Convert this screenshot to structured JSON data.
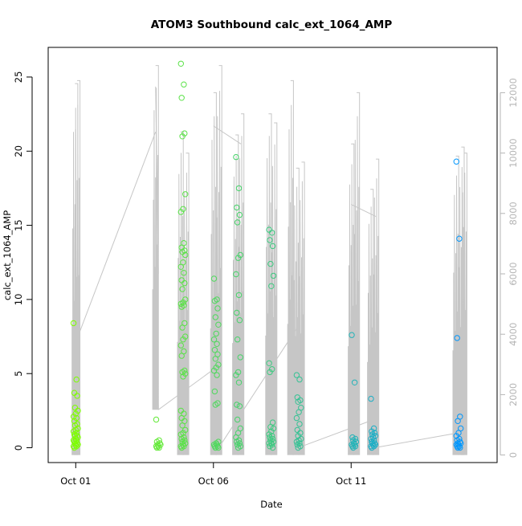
{
  "chart_data": {
    "type": "scatter",
    "title": "ATOM3 Southbound calc_ext_1064_AMP",
    "xlabel": "Date",
    "ylabel": "calc_ext_1064_AMP",
    "x_ticks": [
      "Oct 01",
      "Oct 06",
      "Oct 11"
    ],
    "x_tick_days": [
      1,
      6,
      11
    ],
    "xlim": [
      0.0,
      16.3
    ],
    "ylim": [
      -1.0,
      27.0
    ],
    "y_ticks": [
      0,
      5,
      10,
      15,
      20,
      25
    ],
    "y2lim": [
      -250,
      13500
    ],
    "y2_ticks": [
      0,
      2000,
      4000,
      6000,
      8000,
      10000,
      12000
    ],
    "colors": {
      "point_start": "#7dff00",
      "point_end": "#0096ff",
      "trace": "#c6c6c6",
      "right_axis": "#b5b5b5"
    },
    "series": [
      {
        "type": "points",
        "groups": [
          {
            "day": 1.0,
            "values": [
              8.4,
              4.6,
              3.7,
              3.5,
              2.7,
              2.5,
              2.3,
              2.1,
              2.0,
              1.8,
              1.6,
              1.5,
              1.3,
              1.2,
              1.1,
              1.0,
              0.9,
              0.8,
              0.8,
              0.7,
              0.6,
              0.5,
              0.5,
              0.4,
              0.3,
              0.3,
              0.2,
              0.2,
              0.1,
              0.1,
              0.0
            ]
          },
          {
            "day": 4.0,
            "values": [
              1.9,
              0.5,
              0.4,
              0.3,
              0.2,
              0.2,
              0.1,
              0.1,
              0.0,
              0.0
            ]
          },
          {
            "day": 4.9,
            "values": [
              25.9,
              24.5,
              23.6,
              21.2,
              21.0,
              17.1,
              16.1,
              15.9,
              13.8,
              13.5,
              13.3,
              13.2,
              13.0,
              12.5,
              12.2,
              11.8,
              11.3,
              11.1,
              10.7,
              10.0,
              9.8,
              9.7,
              9.6,
              9.5,
              8.4,
              8.1,
              7.5,
              7.3,
              6.9,
              6.5,
              6.2,
              5.2,
              5.1,
              5.0,
              4.8,
              2.5,
              2.3,
              2.0,
              1.8,
              1.5,
              1.2,
              1.0,
              0.9,
              0.7,
              0.6,
              0.5,
              0.4,
              0.3,
              0.2,
              0.1,
              0.1,
              0.0
            ]
          },
          {
            "day": 6.1,
            "values": [
              11.4,
              10.0,
              9.9,
              9.4,
              8.8,
              8.3,
              7.7,
              7.3,
              7.0,
              6.6,
              6.3,
              6.0,
              5.6,
              5.4,
              5.2,
              4.9,
              3.8,
              3.0,
              2.9,
              0.4,
              0.3,
              0.2,
              0.2,
              0.1,
              0.1,
              0.0,
              0.0
            ]
          },
          {
            "day": 6.9,
            "values": [
              19.6,
              17.5,
              16.2,
              15.7,
              15.2,
              13.0,
              12.8,
              11.7,
              10.3,
              9.1,
              8.6,
              7.3,
              6.1,
              5.1,
              4.9,
              4.4,
              2.9,
              2.8,
              1.9,
              1.3,
              1.0,
              0.7,
              0.5,
              0.4,
              0.3,
              0.2,
              0.1,
              0.0
            ]
          },
          {
            "day": 8.1,
            "values": [
              14.7,
              14.5,
              14.0,
              13.6,
              12.4,
              11.6,
              10.9,
              5.7,
              5.3,
              5.1,
              1.7,
              1.4,
              1.3,
              1.1,
              0.9,
              0.8,
              0.7,
              0.6,
              0.5,
              0.4,
              0.3,
              0.3,
              0.2,
              0.1,
              0.0
            ]
          },
          {
            "day": 9.1,
            "values": [
              4.9,
              4.6,
              3.4,
              3.2,
              3.1,
              2.7,
              2.4,
              2.0,
              1.6,
              1.2,
              1.0,
              0.8,
              0.6,
              0.5,
              0.4,
              0.3,
              0.2,
              0.1,
              0.0
            ]
          },
          {
            "day": 11.1,
            "values": [
              7.6,
              4.4,
              0.7,
              0.6,
              0.5,
              0.4,
              0.3,
              0.2,
              0.2,
              0.1,
              0.1,
              0.0
            ]
          },
          {
            "day": 11.8,
            "values": [
              3.3,
              1.3,
              1.1,
              1.0,
              0.9,
              0.8,
              0.7,
              0.6,
              0.5,
              0.4,
              0.3,
              0.3,
              0.2,
              0.2,
              0.1,
              0.1,
              0.0
            ]
          },
          {
            "day": 14.9,
            "values": [
              19.3,
              14.1,
              7.4,
              2.1,
              1.8,
              1.3,
              1.0,
              0.8,
              0.6,
              0.5,
              0.4,
              0.3,
              0.3,
              0.2,
              0.2,
              0.1,
              0.1,
              0.0,
              0.0
            ]
          }
        ]
      },
      {
        "type": "line",
        "axis": "right",
        "bursts": [
          {
            "day": 0.97,
            "min": 0,
            "max": 12300
          },
          {
            "day": 1.05,
            "min": 0,
            "max": 12400
          },
          {
            "day": 3.9,
            "min": 1500,
            "max": 12900
          },
          {
            "day": 4.8,
            "min": 0,
            "max": 10700
          },
          {
            "day": 5.0,
            "min": 0,
            "max": 10000
          },
          {
            "day": 6.0,
            "min": 0,
            "max": 12000
          },
          {
            "day": 6.2,
            "min": 0,
            "max": 12900
          },
          {
            "day": 6.8,
            "min": 0,
            "max": 10600
          },
          {
            "day": 7.0,
            "min": 0,
            "max": 11300
          },
          {
            "day": 8.0,
            "min": 0,
            "max": 11300
          },
          {
            "day": 8.2,
            "min": 0,
            "max": 11000
          },
          {
            "day": 8.8,
            "min": 0,
            "max": 12400
          },
          {
            "day": 9.0,
            "min": 0,
            "max": 9500
          },
          {
            "day": 9.2,
            "min": 0,
            "max": 9700
          },
          {
            "day": 11.0,
            "min": 0,
            "max": 10300
          },
          {
            "day": 11.2,
            "min": 0,
            "max": 12000
          },
          {
            "day": 11.7,
            "min": 0,
            "max": 8800
          },
          {
            "day": 11.9,
            "min": 0,
            "max": 9800
          },
          {
            "day": 14.8,
            "min": 0,
            "max": 9900
          },
          {
            "day": 15.0,
            "min": 0,
            "max": 10200
          },
          {
            "day": 15.1,
            "min": 0,
            "max": 10000
          }
        ],
        "connectors": [
          [
            1.05,
            3850,
            3.9,
            10700
          ],
          [
            3.9,
            12200,
            4.0,
            6000
          ],
          [
            3.9,
            6000,
            4.0,
            1500
          ],
          [
            4.0,
            1500,
            6.1,
            2900
          ],
          [
            6.0,
            10900,
            7.0,
            10300
          ],
          [
            6.2,
            250,
            9.1,
            4300
          ],
          [
            9.1,
            250,
            11.9,
            1200
          ],
          [
            11.0,
            8300,
            11.9,
            7900
          ],
          [
            11.9,
            250,
            15.0,
            750
          ]
        ]
      }
    ],
    "grid": false,
    "legend": "none"
  }
}
